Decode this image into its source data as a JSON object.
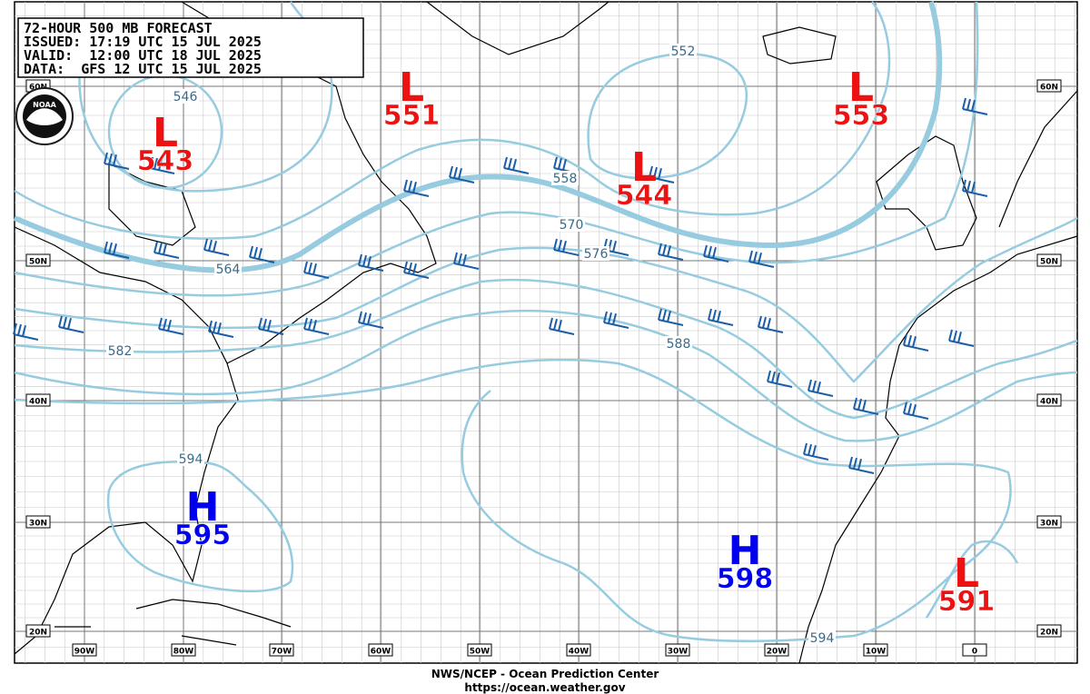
{
  "header": {
    "lines": [
      "72-HOUR 500 MB FORECAST",
      "ISSUED: 17:19 UTC 15 JUL 2025",
      "VALID:  12:00 UTC 18 JUL 2025",
      "DATA:  GFS 12 UTC 15 JUL 2025"
    ]
  },
  "logo": "NOAA",
  "centers": [
    {
      "letter": "L",
      "value": 543
    },
    {
      "letter": "L",
      "value": 551
    },
    {
      "letter": "L",
      "value": 544
    },
    {
      "letter": "L",
      "value": 553
    },
    {
      "letter": "H",
      "value": 595
    },
    {
      "letter": "H",
      "value": 598
    },
    {
      "letter": "L",
      "value": 591
    }
  ],
  "contour_labels": [
    552,
    546,
    558,
    570,
    576,
    564,
    582,
    588,
    594,
    594
  ],
  "lat_labels": [
    "60N",
    "50N",
    "40N",
    "30N",
    "20N"
  ],
  "lon_labels": [
    "90W",
    "80W",
    "70W",
    "60W",
    "50W",
    "40W",
    "30W",
    "20W",
    "10W",
    "0"
  ],
  "footer": {
    "lines": [
      "NWS/NCEP - Ocean Prediction Center",
      "https://ocean.weather.gov"
    ]
  }
}
